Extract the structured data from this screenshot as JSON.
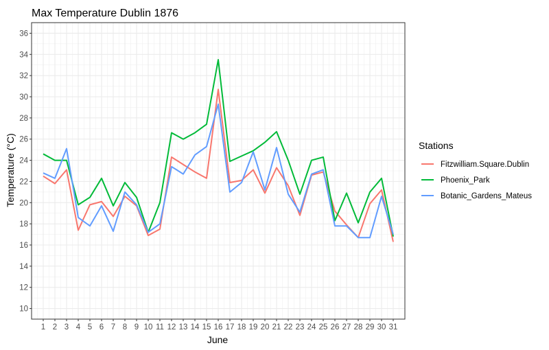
{
  "chart_data": {
    "type": "line",
    "title": "Max Temperature  Dublin 1876",
    "xlabel": "June",
    "ylabel": "Temperature (°C)",
    "x": [
      1,
      2,
      3,
      4,
      5,
      6,
      7,
      8,
      9,
      10,
      11,
      12,
      13,
      14,
      15,
      16,
      17,
      18,
      19,
      20,
      21,
      22,
      23,
      24,
      25,
      26,
      27,
      28,
      29,
      30,
      31
    ],
    "xlim": [
      0,
      32
    ],
    "ylim": [
      9,
      37
    ],
    "yticks": [
      10,
      12,
      14,
      16,
      18,
      20,
      22,
      24,
      26,
      28,
      30,
      32,
      34,
      36
    ],
    "grid": true,
    "legend": {
      "title": "Stations",
      "position": "right"
    },
    "series": [
      {
        "name": "Fitzwilliam.Square.Dublin",
        "color": "#F8766D",
        "values": [
          22.5,
          21.8,
          23.1,
          17.4,
          19.8,
          20.1,
          18.7,
          20.6,
          19.7,
          16.9,
          17.5,
          24.3,
          23.6,
          22.9,
          22.3,
          30.7,
          21.9,
          22.1,
          23.1,
          20.9,
          23.3,
          21.6,
          18.8,
          22.6,
          22.9,
          19.2,
          17.9,
          16.7,
          19.9,
          21.2,
          16.3
        ]
      },
      {
        "name": "Phoenix_Park",
        "color": "#00BA38",
        "values": [
          24.6,
          24.0,
          24.0,
          19.8,
          20.5,
          22.3,
          19.7,
          21.9,
          20.5,
          17.2,
          20.0,
          26.6,
          26.0,
          26.6,
          27.4,
          33.5,
          23.9,
          24.4,
          24.9,
          25.7,
          26.7,
          24.0,
          20.8,
          24.0,
          24.3,
          18.3,
          20.9,
          18.1,
          21.0,
          22.3,
          16.8
        ]
      },
      {
        "name": "Botanic_Gardens_Mateus",
        "color": "#619CFF",
        "values": [
          22.8,
          22.3,
          25.1,
          18.6,
          17.8,
          19.7,
          17.3,
          21.0,
          19.8,
          17.2,
          18.0,
          23.4,
          22.7,
          24.5,
          25.3,
          29.3,
          21.0,
          21.9,
          24.8,
          21.2,
          25.2,
          20.8,
          19.1,
          22.7,
          23.1,
          17.8,
          17.8,
          16.7,
          16.7,
          20.6,
          17.0
        ]
      }
    ]
  }
}
